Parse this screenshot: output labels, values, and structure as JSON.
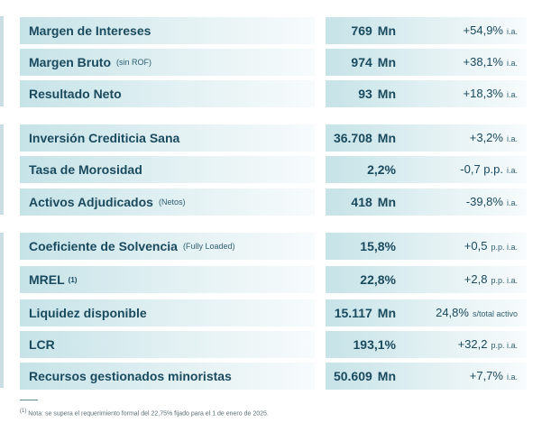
{
  "rows": [
    {
      "label": "Margen de Intereses",
      "sub": "",
      "sup": "",
      "value": "769",
      "unit": "Mn",
      "change": "+54,9%",
      "suffix": "i.a."
    },
    {
      "label": "Margen Bruto",
      "sub": "(sin ROF)",
      "sup": "",
      "value": "974",
      "unit": "Mn",
      "change": "+38,1%",
      "suffix": "i.a."
    },
    {
      "label": "Resultado Neto",
      "sub": "",
      "sup": "",
      "value": "93",
      "unit": "Mn",
      "change": "+18,3%",
      "suffix": "i.a."
    },
    {
      "label": "Inversión Crediticia Sana",
      "sub": "",
      "sup": "",
      "value": "36.708",
      "unit": "Mn",
      "change": "+3,2%",
      "suffix": "i.a."
    },
    {
      "label": "Tasa de Morosidad",
      "sub": "",
      "sup": "",
      "value": "2,2%",
      "unit": "",
      "change": "-0,7 p.p.",
      "suffix": "i.a."
    },
    {
      "label": "Activos Adjudicados",
      "sub": "(Netos)",
      "sup": "",
      "value": "418",
      "unit": "Mn",
      "change": "-39,8%",
      "suffix": "i.a."
    },
    {
      "label": "Coeficiente de Solvencia",
      "sub": "(Fully Loaded)",
      "sup": "",
      "value": "15,8%",
      "unit": "",
      "change": "+0,5",
      "suffix": "p.p. i.a."
    },
    {
      "label": "MREL",
      "sub": "",
      "sup": "(1)",
      "value": "22,8%",
      "unit": "",
      "change": "+2,8",
      "suffix": "p.p. i.a."
    },
    {
      "label": "Liquidez disponible",
      "sub": "",
      "sup": "",
      "value": "15.117",
      "unit": "Mn",
      "change": "24,8%",
      "suffix": "s/total activo"
    },
    {
      "label": "LCR",
      "sub": "",
      "sup": "",
      "value": "193,1%",
      "unit": "",
      "change": "+32,2",
      "suffix": "p.p. i.a."
    },
    {
      "label": "Recursos gestionados minoristas",
      "sub": "",
      "sup": "",
      "value": "50.609",
      "unit": "Mn",
      "change": "+7,7%",
      "suffix": "i.a."
    }
  ],
  "footnote": {
    "marker": "(1)",
    "text": "Nota: se supera el requerimiento formal del 22,75% fijado para el 1 de enero de 2025."
  }
}
